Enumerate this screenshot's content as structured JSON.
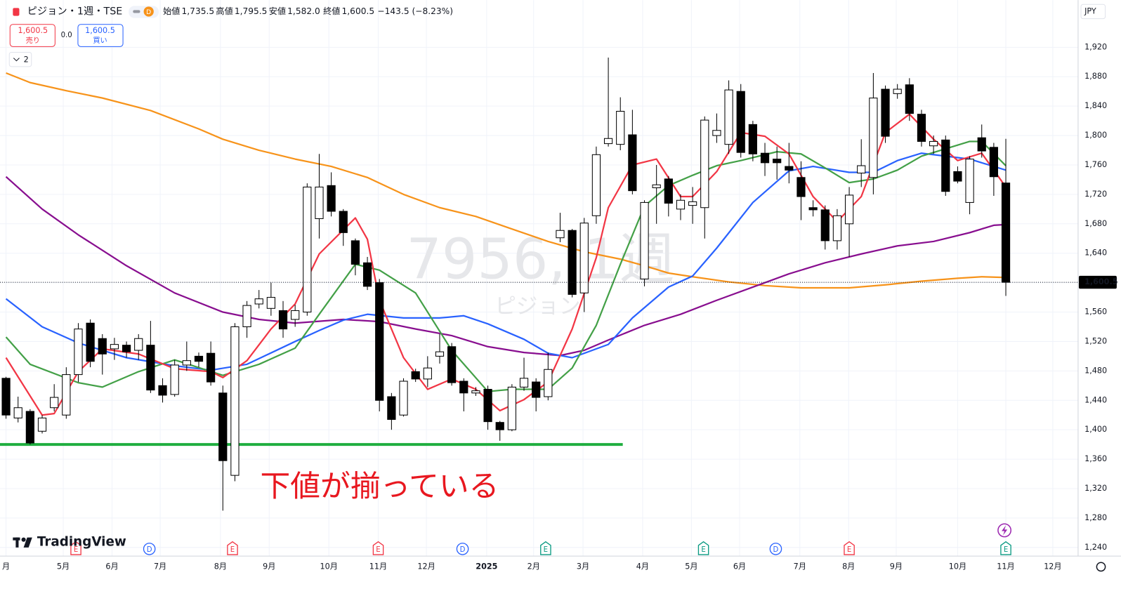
{
  "header": {
    "symbol": "ピジョン・1週・TSE",
    "badge": "D",
    "ohlc": [
      {
        "label": "始値",
        "value": "1,735.5"
      },
      {
        "label": "高値",
        "value": "1,795.5"
      },
      {
        "label": "安値",
        "value": "1,582.0"
      },
      {
        "label": "終値",
        "value": "1,600.5"
      }
    ],
    "change": "−143.5 (−8.23%)",
    "sell": {
      "price": "1,600.5",
      "label": "売り"
    },
    "spread": "0.0",
    "buy": {
      "price": "1,600.5",
      "label": "買い"
    },
    "indicators": "2",
    "currency": "JPY"
  },
  "footer": {
    "logo": "TradingView"
  },
  "chart_data": {
    "type": "candlestick",
    "up_color": "#ffffff",
    "down_color": "#000000",
    "edge_color": "#000000",
    "open": [
      1470,
      1416,
      1425,
      1398,
      1430,
      1420,
      1475,
      1545,
      1524,
      1510,
      1515,
      1508,
      1515,
      1460,
      1448,
      1488,
      1500,
      1504,
      1450,
      1338,
      1540,
      1571,
      1565,
      1562,
      1550,
      1560,
      1687,
      1732,
      1697,
      1657,
      1627,
      1600,
      1445,
      1420,
      1479,
      1469,
      1500,
      1513,
      1466,
      1450,
      1455,
      1410,
      1400,
      1458,
      1465,
      1445,
      1661,
      1671,
      1586,
      1691,
      1789,
      1788,
      1801,
      1605,
      1729,
      1741,
      1700,
      1705,
      1702,
      1800,
      1788,
      1860,
      1815,
      1776,
      1768,
      1758,
      1743,
      1702,
      1699,
      1657,
      1680,
      1749,
      1743,
      1863,
      1857,
      1869,
      1829,
      1786,
      1794,
      1751,
      1709,
      1797,
      1784,
      1735.5
    ],
    "high": [
      1472,
      1445,
      1428,
      1420,
      1462,
      1485,
      1545,
      1550,
      1530,
      1525,
      1520,
      1530,
      1548,
      1470,
      1495,
      1520,
      1505,
      1520,
      1460,
      1545,
      1575,
      1590,
      1600,
      1575,
      1570,
      1735,
      1775,
      1750,
      1700,
      1660,
      1635,
      1605,
      1450,
      1470,
      1483,
      1500,
      1530,
      1518,
      1470,
      1458,
      1460,
      1412,
      1462,
      1498,
      1470,
      1505,
      1695,
      1673,
      1688,
      1785,
      1906,
      1852,
      1835,
      1712,
      1760,
      1745,
      1720,
      1730,
      1826,
      1830,
      1875,
      1870,
      1820,
      1790,
      1785,
      1790,
      1765,
      1712,
      1705,
      1700,
      1730,
      1795,
      1885,
      1868,
      1870,
      1878,
      1835,
      1800,
      1800,
      1758,
      1772,
      1815,
      1790,
      1795.5
    ],
    "low": [
      1415,
      1410,
      1380,
      1395,
      1425,
      1415,
      1465,
      1485,
      1475,
      1495,
      1498,
      1495,
      1450,
      1437,
      1445,
      1480,
      1485,
      1460,
      1290,
      1330,
      1525,
      1565,
      1555,
      1525,
      1540,
      1555,
      1660,
      1690,
      1650,
      1610,
      1590,
      1425,
      1400,
      1418,
      1465,
      1458,
      1490,
      1460,
      1425,
      1446,
      1400,
      1385,
      1398,
      1453,
      1425,
      1440,
      1655,
      1580,
      1560,
      1680,
      1785,
      1780,
      1720,
      1595,
      1680,
      1690,
      1685,
      1680,
      1660,
      1790,
      1775,
      1770,
      1765,
      1745,
      1740,
      1735,
      1685,
      1690,
      1645,
      1645,
      1635,
      1730,
      1720,
      1790,
      1850,
      1820,
      1785,
      1775,
      1718,
      1735,
      1693,
      1770,
      1718,
      1582.0
    ],
    "close": [
      1420,
      1430,
      1382,
      1416,
      1444,
      1475,
      1537,
      1493,
      1503,
      1516,
      1506,
      1524,
      1454,
      1447,
      1488,
      1494,
      1493,
      1465,
      1358,
      1540,
      1569,
      1578,
      1580,
      1537,
      1562,
      1730,
      1730,
      1697,
      1668,
      1625,
      1595,
      1440,
      1414,
      1466,
      1469,
      1484,
      1506,
      1464,
      1450,
      1453,
      1411,
      1400,
      1458,
      1470,
      1444,
      1482,
      1671,
      1584,
      1681,
      1774,
      1796,
      1833,
      1725,
      1709,
      1733,
      1708,
      1712,
      1710,
      1821,
      1807,
      1862,
      1777,
      1775,
      1763,
      1763,
      1753,
      1717,
      1699,
      1657,
      1691,
      1719,
      1759,
      1851,
      1799,
      1863,
      1830,
      1792,
      1792,
      1724,
      1738,
      1768,
      1779,
      1744,
      1600.5
    ],
    "lines": [
      {
        "color": "#f7931a",
        "x": [
          0,
          2,
          5,
          8,
          12,
          16,
          18,
          21,
          24,
          27,
          30,
          33,
          36,
          39,
          42,
          45,
          48,
          51,
          53,
          55,
          57,
          60,
          63,
          66,
          70,
          73,
          76,
          79,
          81,
          83
        ],
        "values": [
          1885,
          1872,
          1861,
          1851,
          1834,
          1809,
          1795,
          1780,
          1768,
          1758,
          1743,
          1720,
          1702,
          1690,
          1673,
          1656,
          1642,
          1632,
          1623,
          1613,
          1608,
          1601,
          1596,
          1593,
          1593,
          1597,
          1602,
          1606,
          1608,
          1607
        ]
      },
      {
        "color": "#880e8f",
        "x": [
          0,
          3,
          6,
          10,
          14,
          18,
          21,
          24,
          28,
          31,
          34,
          37,
          40,
          43,
          46,
          48,
          50,
          53,
          56,
          59,
          62,
          65,
          68,
          71,
          74,
          77,
          80,
          82,
          83
        ],
        "values": [
          1744,
          1700,
          1665,
          1623,
          1586,
          1560,
          1550,
          1545,
          1550,
          1547,
          1537,
          1528,
          1513,
          1505,
          1501,
          1508,
          1522,
          1542,
          1557,
          1576,
          1594,
          1612,
          1627,
          1639,
          1650,
          1656,
          1668,
          1678,
          1679
        ]
      },
      {
        "color": "#2962ff",
        "x": [
          0,
          3,
          6,
          10,
          14,
          17,
          20,
          24,
          26,
          28,
          30,
          33,
          36,
          38,
          40,
          43,
          45,
          47,
          50,
          52,
          55,
          57,
          59,
          62,
          65,
          67,
          70,
          72,
          74,
          76,
          78,
          80,
          83
        ],
        "values": [
          1578,
          1540,
          1518,
          1498,
          1487,
          1481,
          1489,
          1520,
          1535,
          1549,
          1557,
          1552,
          1552,
          1555,
          1544,
          1523,
          1504,
          1498,
          1516,
          1552,
          1594,
          1609,
          1647,
          1709,
          1752,
          1758,
          1750,
          1750,
          1766,
          1776,
          1772,
          1768,
          1753
        ]
      },
      {
        "color": "#43a047",
        "x": [
          0,
          2,
          6,
          8,
          11,
          14,
          18,
          21,
          24,
          26,
          29,
          31,
          34,
          37,
          40,
          42,
          45,
          47,
          49,
          51,
          53,
          55,
          57,
          59,
          61,
          64,
          66,
          68,
          70,
          72,
          74,
          76,
          78,
          80,
          81,
          83
        ],
        "values": [
          1526,
          1489,
          1464,
          1458,
          1479,
          1495,
          1474,
          1489,
          1511,
          1557,
          1625,
          1617,
          1586,
          1508,
          1452,
          1455,
          1455,
          1484,
          1542,
          1625,
          1704,
          1732,
          1746,
          1759,
          1766,
          1778,
          1775,
          1756,
          1736,
          1741,
          1753,
          1772,
          1782,
          1792,
          1792,
          1759
        ]
      },
      {
        "color": "#f23645",
        "x": [
          0,
          3,
          4,
          6,
          8,
          11,
          14,
          17,
          18,
          20,
          22,
          24,
          26,
          29,
          30,
          31,
          33,
          35,
          37,
          39,
          41,
          43,
          45,
          47,
          49,
          50,
          52,
          54,
          56,
          57,
          59,
          61,
          63,
          65,
          67,
          69,
          71,
          73,
          75,
          77,
          79,
          81,
          83
        ],
        "values": [
          1498,
          1420,
          1422,
          1479,
          1510,
          1503,
          1483,
          1479,
          1471,
          1494,
          1537,
          1571,
          1639,
          1688,
          1659,
          1576,
          1498,
          1455,
          1469,
          1455,
          1426,
          1441,
          1465,
          1537,
          1634,
          1702,
          1760,
          1768,
          1717,
          1717,
          1751,
          1804,
          1799,
          1775,
          1717,
          1683,
          1717,
          1804,
          1829,
          1795,
          1766,
          1776,
          1730
        ]
      }
    ],
    "support_line": {
      "value": 1380,
      "color": "#1fae3f",
      "x": [
        -0.5,
        51.2
      ]
    },
    "last_value": 1600.5,
    "last_label": "1,600.5",
    "annotation": "下値が揃っている",
    "watermark": {
      "title": "7956, 1週",
      "subtitle": "ピジョン"
    },
    "events": [
      {
        "label": "E",
        "color": "#f23645",
        "x": 5.8
      },
      {
        "label": "D",
        "color": "#2962ff",
        "x": 11.9
      },
      {
        "label": "E",
        "color": "#f23645",
        "x": 18.8
      },
      {
        "label": "E",
        "color": "#f23645",
        "x": 30.9
      },
      {
        "label": "D",
        "color": "#2962ff",
        "x": 37.9
      },
      {
        "label": "E",
        "color": "#089981",
        "x": 44.8
      },
      {
        "label": "E",
        "color": "#089981",
        "x": 57.9
      },
      {
        "label": "D",
        "color": "#2962ff",
        "x": 63.9
      },
      {
        "label": "E",
        "color": "#f23645",
        "x": 70
      },
      {
        "label": "E",
        "color": "#089981",
        "x": 83
      }
    ],
    "xlim": [
      -0.5,
      89
    ],
    "xticks": [
      {
        "value": 0,
        "label": "月"
      },
      {
        "value": 4.75,
        "label": "5月"
      },
      {
        "value": 8.8,
        "label": "6月"
      },
      {
        "value": 12.8,
        "label": "7月"
      },
      {
        "value": 17.8,
        "label": "8月"
      },
      {
        "value": 21.85,
        "label": "9月"
      },
      {
        "value": 26.8,
        "label": "10月"
      },
      {
        "value": 30.9,
        "label": "11月"
      },
      {
        "value": 34.9,
        "label": "12月"
      },
      {
        "value": 39.9,
        "label": "2025"
      },
      {
        "value": 43.8,
        "label": "2月"
      },
      {
        "value": 47.9,
        "label": "3月"
      },
      {
        "value": 52.85,
        "label": "4月"
      },
      {
        "value": 56.9,
        "label": "5月"
      },
      {
        "value": 60.9,
        "label": "6月"
      },
      {
        "value": 65.9,
        "label": "7月"
      },
      {
        "value": 69.95,
        "label": "8月"
      },
      {
        "value": 73.9,
        "label": "9月"
      },
      {
        "value": 79,
        "label": "10月"
      },
      {
        "value": 83,
        "label": "11月"
      },
      {
        "value": 86.9,
        "label": "12月"
      }
    ],
    "ylim": [
      1228.3,
      1984.1
    ],
    "yticks": [
      {
        "value": 1240,
        "label": "1,240"
      },
      {
        "value": 1280,
        "label": "1,280"
      },
      {
        "value": 1320,
        "label": "1,320"
      },
      {
        "value": 1360,
        "label": "1,360"
      },
      {
        "value": 1400,
        "label": "1,400"
      },
      {
        "value": 1440,
        "label": "1,440"
      },
      {
        "value": 1480,
        "label": "1,480"
      },
      {
        "value": 1520,
        "label": "1,520"
      },
      {
        "value": 1560,
        "label": "1,560"
      },
      {
        "value": 1600,
        "label": "1,600"
      },
      {
        "value": 1640,
        "label": "1,640"
      },
      {
        "value": 1680,
        "label": "1,680"
      },
      {
        "value": 1720,
        "label": "1,720"
      },
      {
        "value": 1760,
        "label": "1,760"
      },
      {
        "value": 1800,
        "label": "1,800"
      },
      {
        "value": 1840,
        "label": "1,840"
      },
      {
        "value": 1880,
        "label": "1,880"
      },
      {
        "value": 1920,
        "label": "1,920"
      }
    ],
    "grid": true
  }
}
